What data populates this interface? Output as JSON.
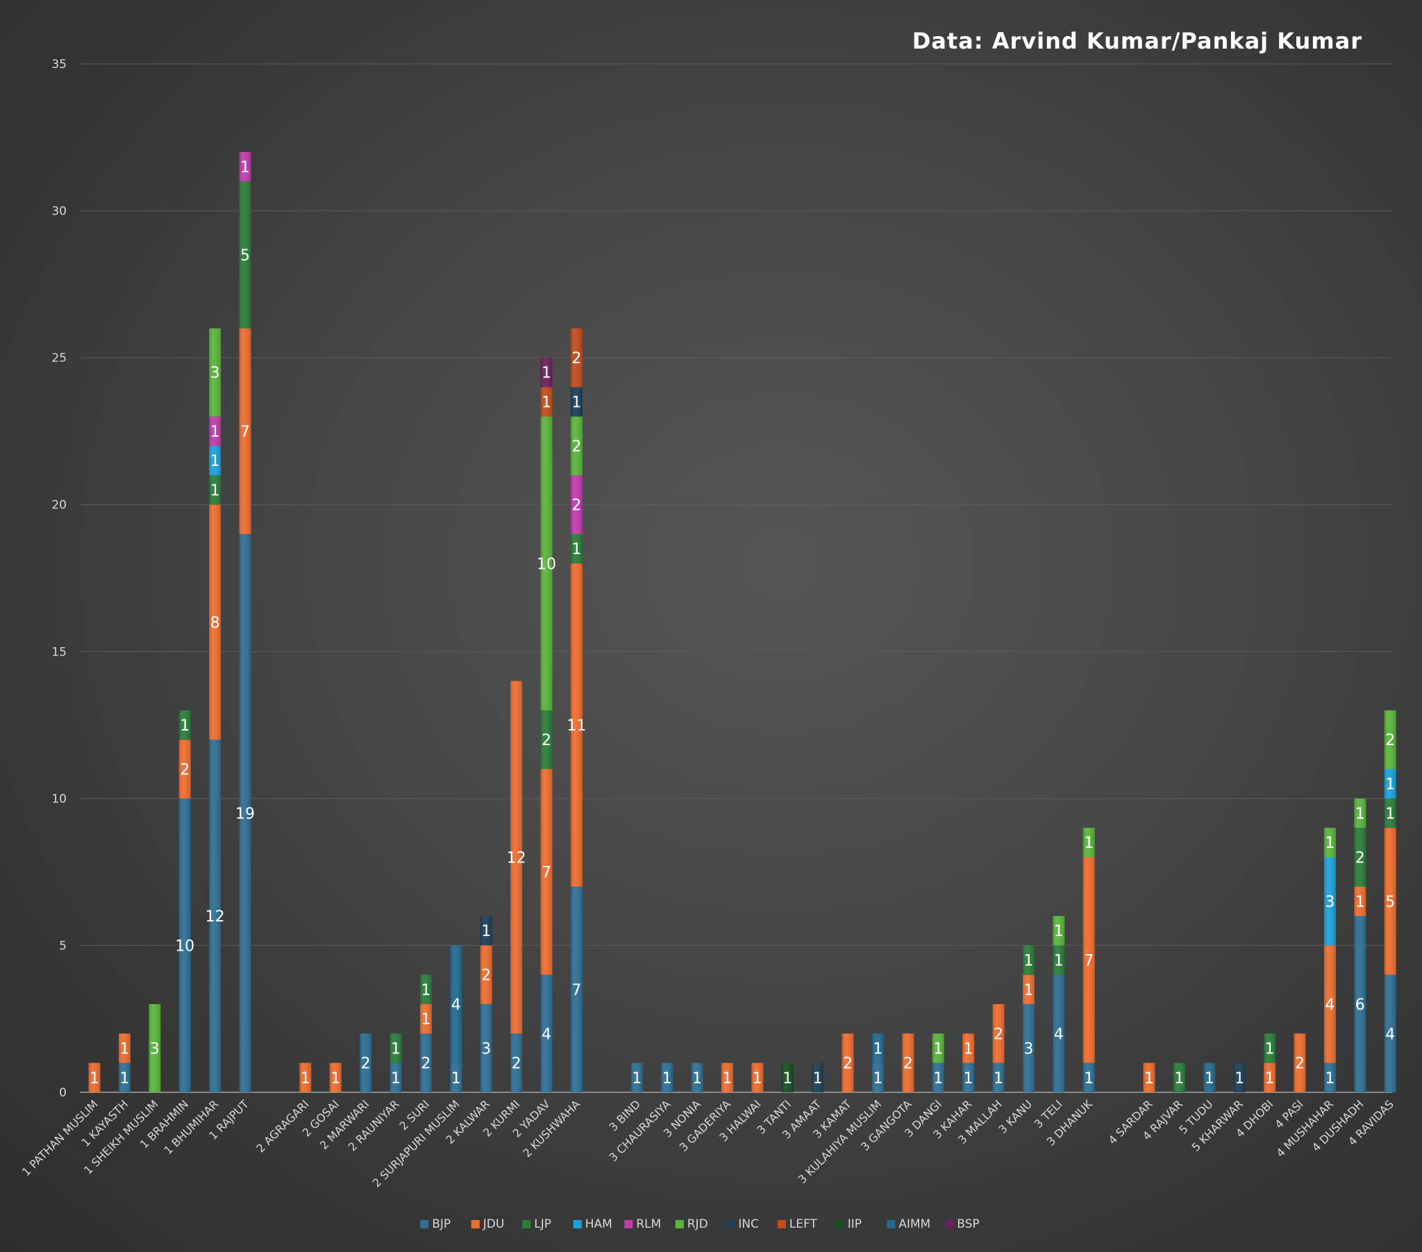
{
  "title": "Data: Arvind Kumar/Pankaj Kumar",
  "chart_data": {
    "type": "bar",
    "stacked": true,
    "title": "Data: Arvind Kumar/Pankaj Kumar",
    "xlabel": "",
    "ylabel": "",
    "ylim": [
      0,
      35
    ],
    "yticks": [
      0,
      5,
      10,
      15,
      20,
      25,
      30,
      35
    ],
    "grid": true,
    "legend_position": "bottom",
    "groups": [
      [
        "1 PATHAN MUSLIM",
        "1 KAYASTH",
        "1 SHEIKH MUSLIM",
        "1 BRAHMIN",
        "1 BHUMIHAR",
        "1 RAJPUT"
      ],
      [
        "2 AGRAGARI",
        "2 GOSAI",
        "2 MARWARI",
        "2 RAUNIYAR",
        "2 SURI",
        "2 SURJAPURI MUSLIM",
        "2 KALWAR",
        "2 KURMI",
        "2 YADAV",
        "2 KUSHWAHA"
      ],
      [
        "3 BIND",
        "3 CHAURASIYA",
        "3 NONIA",
        "3 GADERIYA",
        "3 HALWAI",
        "3 TANTI",
        "3 AMAAT",
        "3 KAMAT",
        "3 KULAHIYA MUSLIM",
        "3 GANGOTA",
        "3 DANGI",
        "3 KAHAR",
        "3 MALLAH",
        "3 KANU",
        "3 TELI",
        "3 DHANUK"
      ],
      [
        "4 SARDAR",
        "4 RAJVAR",
        "5 TUDU",
        "5 KHARWAR",
        "4 DHOBI",
        "4 PASI",
        "4 MUSHAHAR",
        "4 DUSHADH",
        "4 RAVIDAS"
      ]
    ],
    "categories": [
      "1 PATHAN MUSLIM",
      "1 KAYASTH",
      "1 SHEIKH MUSLIM",
      "1 BRAHMIN",
      "1 BHUMIHAR",
      "1 RAJPUT",
      "2 AGRAGARI",
      "2 GOSAI",
      "2 MARWARI",
      "2 RAUNIYAR",
      "2 SURI",
      "2 SURJAPURI MUSLIM",
      "2 KALWAR",
      "2 KURMI",
      "2 YADAV",
      "2 KUSHWAHA",
      "3 BIND",
      "3 CHAURASIYA",
      "3 NONIA",
      "3 GADERIYA",
      "3 HALWAI",
      "3 TANTI",
      "3 AMAAT",
      "3 KAMAT",
      "3 KULAHIYA MUSLIM",
      "3 GANGOTA",
      "3 DANGI",
      "3 KAHAR",
      "3 MALLAH",
      "3 KANU",
      "3 TELI",
      "3 DHANUK",
      "4 SARDAR",
      "4 RAJVAR",
      "5 TUDU",
      "5 KHARWAR",
      "4 DHOBI",
      "4 PASI",
      "4 MUSHAHAR",
      "4 DUSHADH",
      "4 RAVIDAS"
    ],
    "series": [
      {
        "name": "BJP",
        "color": "#2f6f95",
        "values": [
          0,
          1,
          0,
          10,
          12,
          19,
          0,
          0,
          2,
          1,
          2,
          1,
          3,
          2,
          4,
          7,
          1,
          1,
          1,
          0,
          0,
          0,
          0,
          0,
          1,
          0,
          1,
          1,
          1,
          3,
          4,
          1,
          0,
          0,
          0,
          0,
          0,
          0,
          1,
          6,
          4
        ]
      },
      {
        "name": "JDU",
        "color": "#ef6d2f",
        "values": [
          1,
          1,
          0,
          2,
          8,
          7,
          1,
          1,
          0,
          0,
          1,
          0,
          2,
          12,
          7,
          11,
          0,
          0,
          0,
          1,
          1,
          0,
          0,
          2,
          0,
          2,
          0,
          1,
          2,
          1,
          0,
          7,
          1,
          0,
          0,
          0,
          1,
          2,
          4,
          1,
          5
        ]
      },
      {
        "name": "LJP",
        "color": "#2b7d3a",
        "values": [
          0,
          0,
          0,
          1,
          1,
          5,
          0,
          0,
          0,
          1,
          1,
          0,
          0,
          0,
          2,
          1,
          0,
          0,
          0,
          0,
          0,
          0,
          0,
          0,
          0,
          0,
          0,
          0,
          0,
          1,
          1,
          0,
          0,
          1,
          0,
          0,
          1,
          0,
          0,
          2,
          1
        ]
      },
      {
        "name": "HAM",
        "color": "#1ba2dc",
        "values": [
          0,
          0,
          0,
          0,
          1,
          0,
          0,
          0,
          0,
          0,
          0,
          0,
          0,
          0,
          0,
          0,
          0,
          0,
          0,
          0,
          0,
          0,
          0,
          0,
          0,
          0,
          0,
          0,
          0,
          0,
          0,
          0,
          0,
          0,
          0,
          0,
          0,
          0,
          3,
          0,
          1
        ]
      },
      {
        "name": "RLM",
        "color": "#c03cae",
        "values": [
          0,
          0,
          0,
          0,
          1,
          1,
          0,
          0,
          0,
          0,
          0,
          0,
          0,
          0,
          0,
          2,
          0,
          0,
          0,
          0,
          0,
          0,
          0,
          0,
          0,
          0,
          0,
          0,
          0,
          0,
          0,
          0,
          0,
          0,
          0,
          0,
          0,
          0,
          0,
          0,
          0
        ]
      },
      {
        "name": "RJD",
        "color": "#5ab53c",
        "values": [
          0,
          0,
          3,
          0,
          3,
          0,
          0,
          0,
          0,
          0,
          0,
          0,
          0,
          0,
          10,
          2,
          0,
          0,
          0,
          0,
          0,
          0,
          0,
          0,
          0,
          0,
          1,
          0,
          0,
          0,
          1,
          1,
          0,
          0,
          0,
          0,
          0,
          0,
          1,
          1,
          2
        ]
      },
      {
        "name": "INC",
        "color": "#1d3f57",
        "values": [
          0,
          0,
          0,
          0,
          0,
          0,
          0,
          0,
          0,
          0,
          0,
          0,
          1,
          0,
          0,
          1,
          0,
          0,
          0,
          0,
          0,
          0,
          1,
          0,
          0,
          0,
          0,
          0,
          0,
          0,
          0,
          0,
          0,
          0,
          0,
          1,
          0,
          0,
          0,
          0,
          0
        ]
      },
      {
        "name": "LEFT",
        "color": "#c14e1a",
        "values": [
          0,
          0,
          0,
          0,
          0,
          0,
          0,
          0,
          0,
          0,
          0,
          0,
          0,
          0,
          1,
          2,
          0,
          0,
          0,
          0,
          0,
          0,
          0,
          0,
          0,
          0,
          0,
          0,
          0,
          0,
          0,
          0,
          0,
          0,
          0,
          0,
          0,
          0,
          0,
          0,
          0
        ]
      },
      {
        "name": "IIP",
        "color": "#174f22",
        "values": [
          0,
          0,
          0,
          0,
          0,
          0,
          0,
          0,
          0,
          0,
          0,
          0,
          0,
          0,
          0,
          0,
          0,
          0,
          0,
          0,
          0,
          1,
          0,
          0,
          0,
          0,
          0,
          0,
          0,
          0,
          0,
          0,
          0,
          0,
          0,
          0,
          0,
          0,
          0,
          0,
          0
        ]
      },
      {
        "name": "AIMM",
        "color": "#236a8f",
        "values": [
          0,
          0,
          0,
          0,
          0,
          0,
          0,
          0,
          0,
          0,
          0,
          4,
          0,
          0,
          0,
          0,
          0,
          0,
          0,
          0,
          0,
          0,
          0,
          0,
          1,
          0,
          0,
          0,
          0,
          0,
          0,
          0,
          0,
          0,
          1,
          0,
          0,
          0,
          0,
          0,
          0
        ]
      },
      {
        "name": "BSP",
        "color": "#6e1f5e",
        "values": [
          0,
          0,
          0,
          0,
          0,
          0,
          0,
          0,
          0,
          0,
          0,
          0,
          0,
          0,
          1,
          0,
          0,
          0,
          0,
          0,
          0,
          0,
          0,
          0,
          0,
          0,
          0,
          0,
          0,
          0,
          0,
          0,
          0,
          0,
          0,
          0,
          0,
          0,
          0,
          0,
          0
        ]
      }
    ]
  }
}
